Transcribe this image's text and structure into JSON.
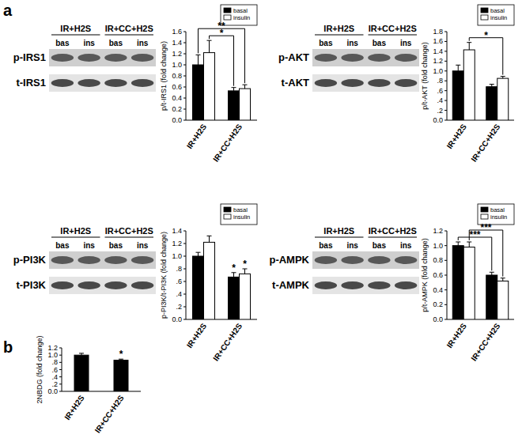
{
  "panel_labels": [
    "a",
    "b"
  ],
  "blots": [
    {
      "groups": [
        "IR+H2S",
        "IR+CC+H2S"
      ],
      "lanes": [
        "bas",
        "ins",
        "bas",
        "ins"
      ],
      "rows": [
        "p-IRS1",
        "t-IRS1"
      ]
    },
    {
      "groups": [
        "IR+H2S",
        "IR+CC+H2S"
      ],
      "lanes": [
        "bas",
        "ins",
        "bas",
        "ins"
      ],
      "rows": [
        "p-AKT",
        "t-AKT"
      ]
    },
    {
      "groups": [
        "IR+H2S",
        "IR+CC+H2S"
      ],
      "lanes": [
        "bas",
        "ins",
        "bas",
        "ins"
      ],
      "rows": [
        "p-PI3K",
        "t-PI3K"
      ]
    },
    {
      "groups": [
        "IR+H2S",
        "IR+CC+H2S"
      ],
      "lanes": [
        "bas",
        "ins",
        "bas",
        "ins"
      ],
      "rows": [
        "p-AMPK",
        "t-AMPK"
      ]
    }
  ],
  "chart_data": [
    {
      "type": "bar",
      "y_label": "p/t-IRS1 (fold change)",
      "categories": [
        "IR+H2S",
        "IR+CC+H2S"
      ],
      "series": [
        {
          "name": "basal",
          "color": "#000000",
          "values": [
            1.0,
            0.53
          ],
          "errors": [
            0.18,
            0.06
          ]
        },
        {
          "name": "insulin",
          "color": "#ffffff",
          "values": [
            1.22,
            0.57
          ],
          "errors": [
            0.22,
            0.07
          ]
        }
      ],
      "ylim": [
        0,
        1.6
      ],
      "yticks": [
        {
          "value": 0,
          "label": "0.0"
        },
        0.2,
        0.4,
        0.6,
        0.8,
        {
          "value": 1,
          "label": "1.0"
        },
        1.2,
        1.4,
        1.6
      ],
      "legend": "upper right",
      "annotations": [
        {
          "text": "*",
          "bars": [
            [
              1,
              0
            ],
            [
              0,
              1
            ]
          ]
        },
        {
          "text": "**",
          "bars": [
            [
              0,
              0
            ],
            [
              1,
              1
            ]
          ]
        }
      ]
    },
    {
      "type": "bar",
      "y_label": "p/t-AKT (fold change)",
      "categories": [
        "IR+H2S",
        "IR+CC+H2S"
      ],
      "series": [
        {
          "name": "basal",
          "color": "#000000",
          "values": [
            1.0,
            0.68
          ],
          "errors": [
            0.12,
            0.05
          ]
        },
        {
          "name": "insulin",
          "color": "#ffffff",
          "values": [
            1.43,
            0.85
          ],
          "errors": [
            0.15,
            0.04
          ]
        }
      ],
      "ylim": [
        0,
        1.8
      ],
      "yticks": [
        {
          "value": 0,
          "label": "0.0"
        },
        {
          "value": 0.2,
          "label": ".2"
        },
        {
          "value": 0.4,
          "label": ".4"
        },
        {
          "value": 0.6,
          "label": ".6"
        },
        {
          "value": 0.8,
          "label": ".8"
        },
        {
          "value": 1,
          "label": "1.0"
        },
        1.2,
        1.4,
        1.6,
        1.8
      ],
      "legend": "upper right",
      "annotations": [
        {
          "text": "*",
          "bars": [
            [
              1,
              0
            ],
            [
              1,
              1
            ]
          ]
        }
      ]
    },
    {
      "type": "bar",
      "y_label": "p-PI3K/t-PI3K (fold change)",
      "categories": [
        "IR+H2S",
        "IR+CC+H2S"
      ],
      "series": [
        {
          "name": "basal",
          "color": "#000000",
          "values": [
            1.0,
            0.67
          ],
          "errors": [
            0.06,
            0.07
          ]
        },
        {
          "name": "insulin",
          "color": "#ffffff",
          "values": [
            1.22,
            0.72
          ],
          "errors": [
            0.1,
            0.08
          ]
        }
      ],
      "ylim": [
        0,
        1.4
      ],
      "yticks": [
        {
          "value": 0,
          "label": "0.0"
        },
        {
          "value": 0.2,
          "label": ".2"
        },
        {
          "value": 0.4,
          "label": ".4"
        },
        {
          "value": 0.6,
          "label": ".6"
        },
        {
          "value": 0.8,
          "label": ".8"
        },
        {
          "value": 1,
          "label": "1.0"
        },
        1.2,
        1.4
      ],
      "legend": "upper right",
      "annotations": [
        {
          "text": "*",
          "bars": [
            [
              0,
              1
            ]
          ]
        },
        {
          "text": "*",
          "bars": [
            [
              1,
              1
            ]
          ]
        }
      ]
    },
    {
      "type": "bar",
      "y_label": "p/t-AMPK (fold change)",
      "categories": [
        "IR+H2S",
        "IR+CC+H2S"
      ],
      "series": [
        {
          "name": "basal",
          "color": "#000000",
          "values": [
            1.0,
            0.6
          ],
          "errors": [
            0.05,
            0.04
          ]
        },
        {
          "name": "insulin",
          "color": "#ffffff",
          "values": [
            0.98,
            0.52
          ],
          "errors": [
            0.07,
            0.04
          ]
        }
      ],
      "ylim": [
        0,
        1.2
      ],
      "yticks": [
        {
          "value": 0,
          "label": "0.0"
        },
        0.2,
        0.4,
        0.6,
        0.8,
        {
          "value": 1,
          "label": "1.0"
        },
        1.2
      ],
      "legend": "upper right",
      "annotations": [
        {
          "text": "***",
          "bars": [
            [
              0,
              0
            ],
            [
              0,
              1
            ]
          ]
        },
        {
          "text": "***",
          "bars": [
            [
              1,
              0
            ],
            [
              1,
              1
            ]
          ]
        }
      ]
    },
    {
      "type": "bar",
      "y_label": "2NBDG (fold change)",
      "categories": [
        "IR+H2S",
        "IR+CC+H2S"
      ],
      "values": [
        1.0,
        0.86
      ],
      "errors": [
        0.05,
        0.03
      ],
      "color": "#000000",
      "ylim": [
        0,
        1.2
      ],
      "yticks": [
        {
          "value": 0,
          "label": "0.0"
        },
        {
          "value": 0.2,
          "label": ".2"
        },
        {
          "value": 0.4,
          "label": ".4"
        },
        {
          "value": 0.6,
          "label": ".6"
        },
        {
          "value": 0.8,
          "label": ".8"
        },
        {
          "value": 1,
          "label": "1.0"
        },
        1.2
      ],
      "annotations": [
        {
          "text": "*",
          "bars": [
            [
              0,
              1
            ]
          ]
        }
      ]
    }
  ]
}
